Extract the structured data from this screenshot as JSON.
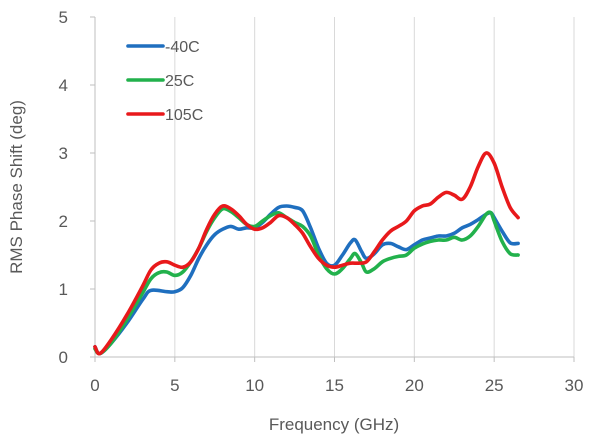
{
  "chart_data": {
    "type": "line",
    "xlabel": "Frequency (GHz)",
    "ylabel": "RMS Phase Shift (deg)",
    "xlim": [
      0,
      30
    ],
    "ylim": [
      0,
      5
    ],
    "xticks": [
      "0",
      "5",
      "10",
      "15",
      "20",
      "25",
      "30"
    ],
    "yticks": [
      "0",
      "1",
      "2",
      "3",
      "4",
      "5"
    ],
    "grid": "vertical",
    "legend_position": "top-left",
    "series": [
      {
        "name": "-40C",
        "color": "#1f6fbf",
        "points": [
          [
            0,
            0.15
          ],
          [
            0.3,
            0.05
          ],
          [
            1,
            0.2
          ],
          [
            2,
            0.5
          ],
          [
            3,
            0.85
          ],
          [
            3.5,
            0.98
          ],
          [
            4.5,
            0.96
          ],
          [
            5,
            0.96
          ],
          [
            5.5,
            1.02
          ],
          [
            6,
            1.2
          ],
          [
            6.5,
            1.45
          ],
          [
            7,
            1.65
          ],
          [
            7.5,
            1.8
          ],
          [
            8,
            1.88
          ],
          [
            8.5,
            1.92
          ],
          [
            9,
            1.88
          ],
          [
            9.5,
            1.9
          ],
          [
            10,
            1.9
          ],
          [
            10.5,
            1.98
          ],
          [
            11,
            2.1
          ],
          [
            11.5,
            2.2
          ],
          [
            12,
            2.22
          ],
          [
            12.5,
            2.2
          ],
          [
            13,
            2.15
          ],
          [
            13.5,
            1.9
          ],
          [
            14,
            1.6
          ],
          [
            14.5,
            1.38
          ],
          [
            15,
            1.35
          ],
          [
            15.5,
            1.5
          ],
          [
            16,
            1.68
          ],
          [
            16.3,
            1.72
          ],
          [
            16.7,
            1.55
          ],
          [
            17,
            1.45
          ],
          [
            17.5,
            1.52
          ],
          [
            18,
            1.65
          ],
          [
            18.5,
            1.67
          ],
          [
            19,
            1.62
          ],
          [
            19.5,
            1.58
          ],
          [
            20,
            1.65
          ],
          [
            20.5,
            1.72
          ],
          [
            21,
            1.75
          ],
          [
            21.5,
            1.78
          ],
          [
            22,
            1.78
          ],
          [
            22.5,
            1.82
          ],
          [
            23,
            1.9
          ],
          [
            23.5,
            1.95
          ],
          [
            24,
            2.02
          ],
          [
            24.5,
            2.1
          ],
          [
            24.8,
            2.12
          ],
          [
            25,
            2.05
          ],
          [
            25.5,
            1.85
          ],
          [
            26,
            1.68
          ],
          [
            26.5,
            1.67
          ]
        ]
      },
      {
        "name": "25C",
        "color": "#22b14c",
        "points": [
          [
            0,
            0.12
          ],
          [
            0.3,
            0.05
          ],
          [
            1,
            0.2
          ],
          [
            2,
            0.55
          ],
          [
            3,
            0.95
          ],
          [
            3.5,
            1.15
          ],
          [
            4,
            1.24
          ],
          [
            4.5,
            1.25
          ],
          [
            5,
            1.2
          ],
          [
            5.5,
            1.25
          ],
          [
            6,
            1.4
          ],
          [
            6.5,
            1.6
          ],
          [
            7,
            1.85
          ],
          [
            7.5,
            2.05
          ],
          [
            8,
            2.18
          ],
          [
            8.5,
            2.14
          ],
          [
            9,
            2.05
          ],
          [
            9.5,
            1.95
          ],
          [
            10,
            1.92
          ],
          [
            10.5,
            2.0
          ],
          [
            11,
            2.08
          ],
          [
            11.5,
            2.12
          ],
          [
            12,
            2.05
          ],
          [
            12.5,
            1.98
          ],
          [
            13,
            1.92
          ],
          [
            13.5,
            1.78
          ],
          [
            14,
            1.5
          ],
          [
            14.5,
            1.3
          ],
          [
            15,
            1.22
          ],
          [
            15.5,
            1.3
          ],
          [
            16,
            1.45
          ],
          [
            16.3,
            1.52
          ],
          [
            16.7,
            1.38
          ],
          [
            17,
            1.25
          ],
          [
            17.5,
            1.3
          ],
          [
            18,
            1.4
          ],
          [
            18.5,
            1.45
          ],
          [
            19,
            1.48
          ],
          [
            19.5,
            1.5
          ],
          [
            20,
            1.6
          ],
          [
            20.5,
            1.66
          ],
          [
            21,
            1.7
          ],
          [
            21.5,
            1.72
          ],
          [
            22,
            1.72
          ],
          [
            22.5,
            1.76
          ],
          [
            23,
            1.72
          ],
          [
            23.5,
            1.78
          ],
          [
            24,
            1.92
          ],
          [
            24.5,
            2.1
          ],
          [
            24.8,
            2.12
          ],
          [
            25,
            2.0
          ],
          [
            25.5,
            1.7
          ],
          [
            26,
            1.52
          ],
          [
            26.5,
            1.5
          ]
        ]
      },
      {
        "name": "105C",
        "color": "#e8191b",
        "points": [
          [
            0,
            0.15
          ],
          [
            0.3,
            0.05
          ],
          [
            1,
            0.25
          ],
          [
            2,
            0.62
          ],
          [
            3,
            1.05
          ],
          [
            3.5,
            1.28
          ],
          [
            4,
            1.38
          ],
          [
            4.5,
            1.4
          ],
          [
            5,
            1.35
          ],
          [
            5.5,
            1.32
          ],
          [
            6,
            1.4
          ],
          [
            6.5,
            1.6
          ],
          [
            7,
            1.88
          ],
          [
            7.5,
            2.1
          ],
          [
            8,
            2.22
          ],
          [
            8.5,
            2.18
          ],
          [
            9,
            2.08
          ],
          [
            9.5,
            1.95
          ],
          [
            10,
            1.88
          ],
          [
            10.5,
            1.9
          ],
          [
            11,
            1.98
          ],
          [
            11.5,
            2.08
          ],
          [
            12,
            2.05
          ],
          [
            12.5,
            1.95
          ],
          [
            13,
            1.82
          ],
          [
            13.5,
            1.62
          ],
          [
            14,
            1.45
          ],
          [
            14.5,
            1.35
          ],
          [
            15,
            1.32
          ],
          [
            15.5,
            1.35
          ],
          [
            16,
            1.38
          ],
          [
            16.5,
            1.38
          ],
          [
            17,
            1.4
          ],
          [
            17.5,
            1.55
          ],
          [
            18,
            1.72
          ],
          [
            18.5,
            1.85
          ],
          [
            19,
            1.92
          ],
          [
            19.5,
            2.0
          ],
          [
            20,
            2.15
          ],
          [
            20.5,
            2.22
          ],
          [
            21,
            2.25
          ],
          [
            21.5,
            2.35
          ],
          [
            22,
            2.42
          ],
          [
            22.5,
            2.38
          ],
          [
            23,
            2.32
          ],
          [
            23.5,
            2.5
          ],
          [
            24,
            2.8
          ],
          [
            24.5,
            3.0
          ],
          [
            25,
            2.85
          ],
          [
            25.5,
            2.5
          ],
          [
            26,
            2.2
          ],
          [
            26.5,
            2.05
          ]
        ]
      }
    ]
  }
}
